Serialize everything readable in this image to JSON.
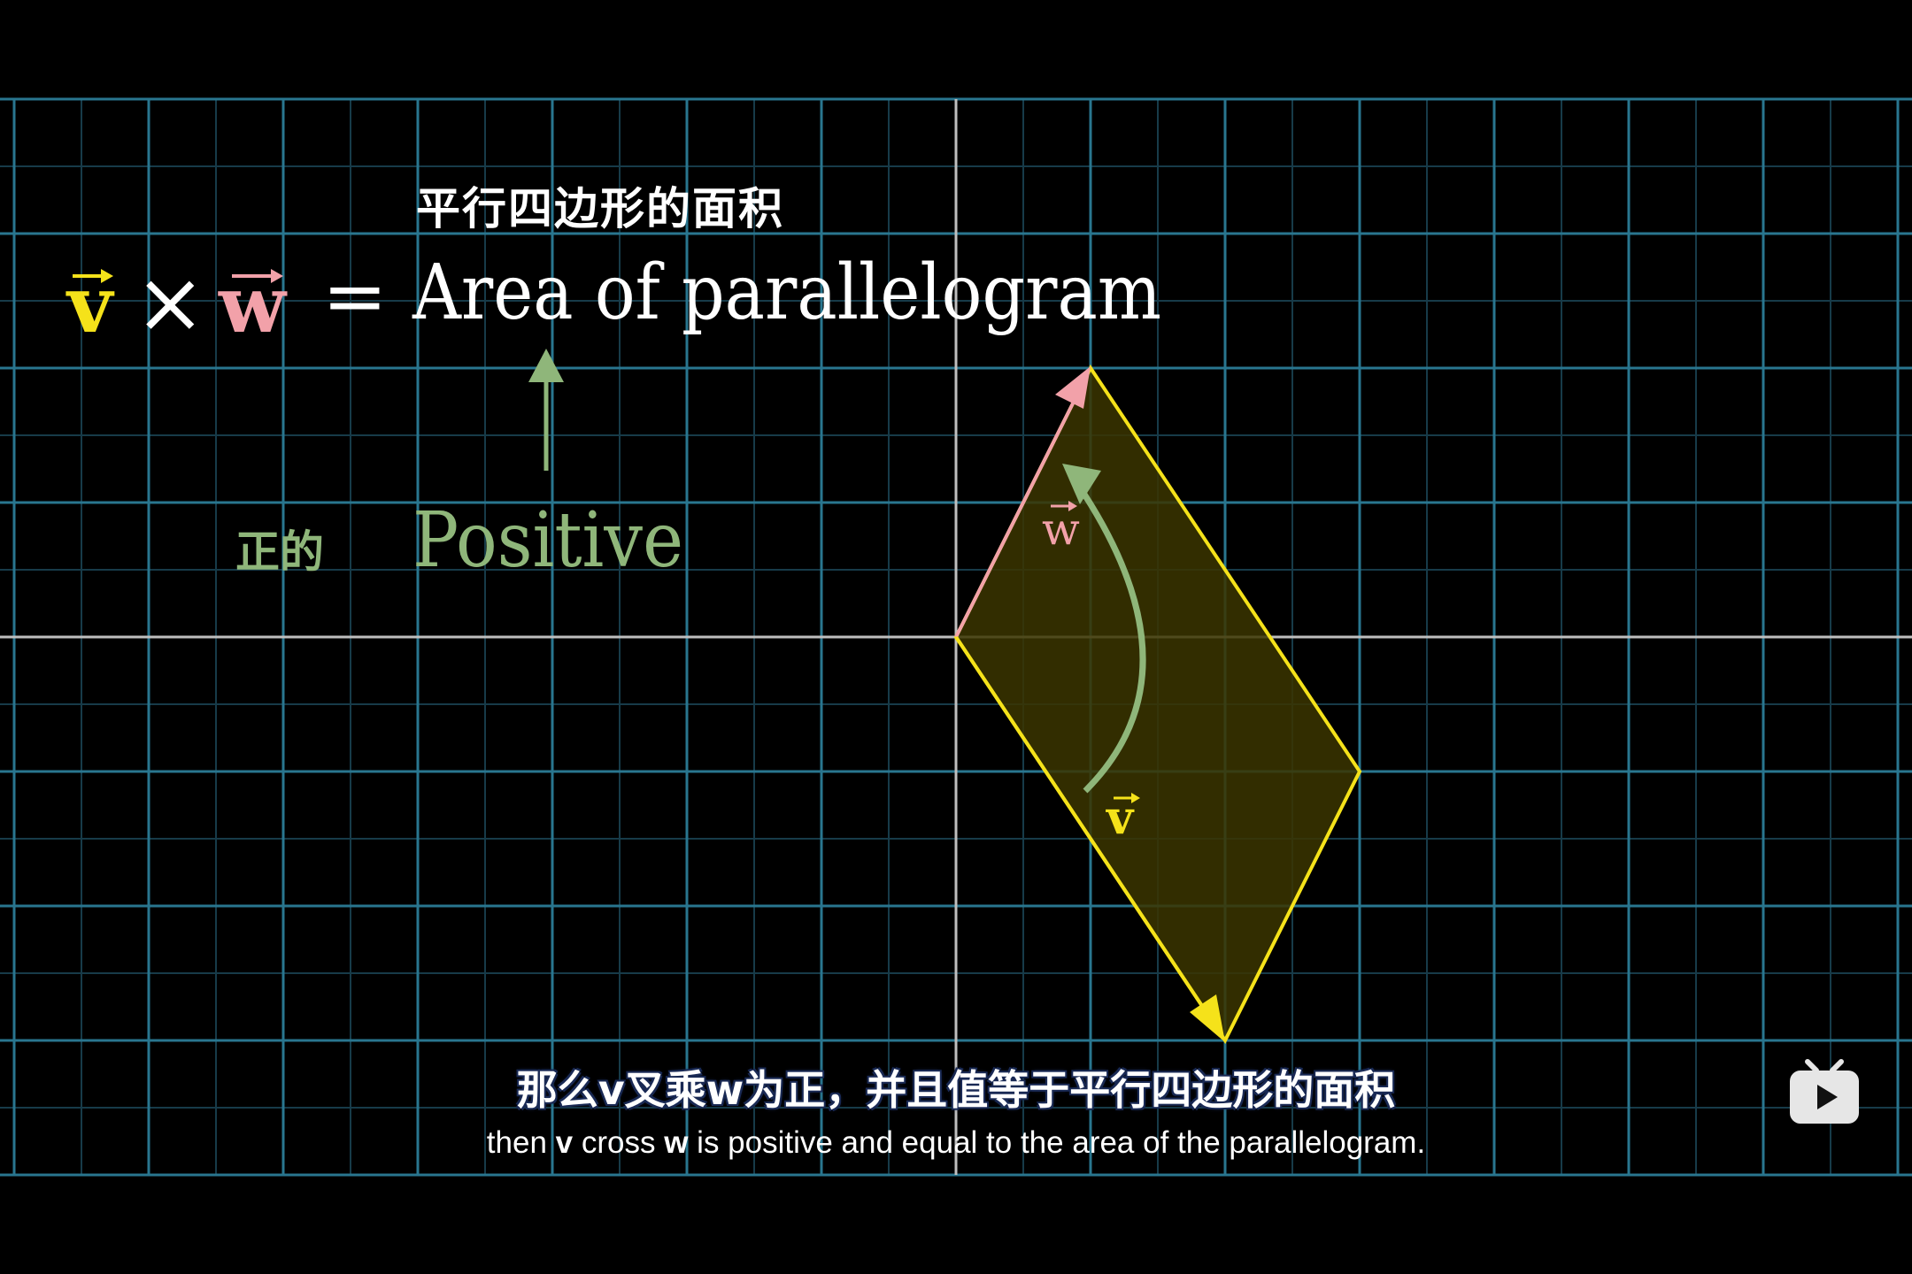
{
  "formula": {
    "v_symbol": "v",
    "times_symbol": "×",
    "w_symbol": "w",
    "equals_symbol": "=",
    "rhs_text": "Area of parallelogram",
    "rhs_translation": "平行四边形的面积"
  },
  "annotation": {
    "positive_text": "Positive",
    "positive_translation": "正的"
  },
  "vectors": {
    "w_label": "w",
    "v_label": "v"
  },
  "subtitles": {
    "chinese": "那么v叉乘w为正，并且值等于平行四边形的面积",
    "english_before_v": "then ",
    "english_v": "v",
    "english_between": " cross ",
    "english_w": "w",
    "english_after_w": " is positive and equal to the area of the parallelogram."
  },
  "colors": {
    "background": "#000000",
    "grid_major": "#29768f",
    "grid_minor": "#173b49",
    "axis": "#bfbfbf",
    "vector_v": "#f5e21a",
    "vector_w": "#f2a1a9",
    "positive_green": "#8fb67a",
    "parallelogram_fill": "#3b3500"
  },
  "icons": {
    "player_logo": "tv-play-icon"
  }
}
